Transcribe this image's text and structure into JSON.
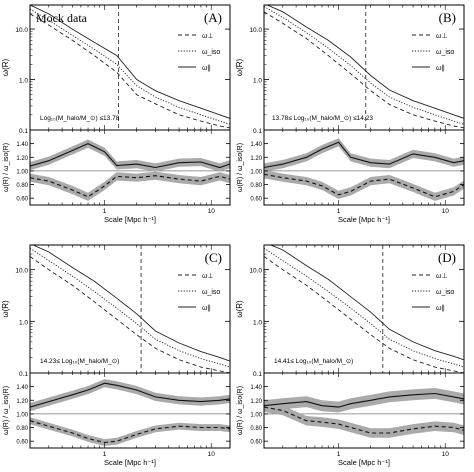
{
  "chart_data": [
    {
      "type": "line",
      "panel": "(A)",
      "title": "Mock data",
      "mass_range": "Log₁₀(M_halo/M_⊙) ≤13.78",
      "xlabel": "Scale [Mpc h⁻¹]",
      "ylabel_top": "ω(R)",
      "ylabel_bottom": "ω(R) / ω_iso(R)",
      "xscale": "log",
      "xlim": [
        0.2,
        15
      ],
      "top": {
        "yscale": "log",
        "ylim": [
          0.1,
          30
        ],
        "yticks": [
          "0.1",
          "1.0",
          "10.0"
        ],
        "vline_x": 1.35,
        "series": [
          {
            "name": "ω⊥",
            "style": "dashed",
            "x": [
              0.2,
              0.3,
              0.5,
              0.8,
              1.3,
              2.0,
              3.0,
              5.0,
              8.0,
              12.0,
              15.0
            ],
            "y": [
              20,
              12,
              6,
              3,
              1.4,
              0.5,
              0.33,
              0.2,
              0.15,
              0.12,
              0.11
            ]
          },
          {
            "name": "ω_iso",
            "style": "dotted",
            "x": [
              0.2,
              0.3,
              0.5,
              0.8,
              1.3,
              2.0,
              3.0,
              5.0,
              8.0,
              12.0,
              15.0
            ],
            "y": [
              25,
              15,
              7.5,
              4,
              2.0,
              0.75,
              0.45,
              0.28,
              0.2,
              0.15,
              0.13
            ]
          },
          {
            "name": "ω∥",
            "style": "solid",
            "x": [
              0.2,
              0.3,
              0.5,
              0.8,
              1.3,
              2.0,
              3.0,
              5.0,
              8.0,
              12.0,
              15.0
            ],
            "y": [
              30,
              20,
              10,
              5.5,
              3.0,
              1.0,
              0.6,
              0.38,
              0.27,
              0.2,
              0.17
            ]
          }
        ]
      },
      "bottom": {
        "ylim": [
          0.5,
          1.6
        ],
        "yticks": [
          "0.60",
          "0.80",
          "1.00",
          "1.20",
          "1.40"
        ],
        "ref": 1.0,
        "series": [
          {
            "name": "ω∥/ω_iso",
            "style": "solid",
            "x": [
              0.2,
              0.3,
              0.5,
              0.7,
              1.0,
              1.3,
              2.0,
              3.0,
              5.0,
              8.0,
              12.0,
              15.0
            ],
            "y": [
              1.07,
              1.15,
              1.3,
              1.4,
              1.28,
              1.08,
              1.1,
              1.05,
              1.12,
              1.13,
              1.05,
              1.1
            ],
            "band": 0.06
          },
          {
            "name": "ω⊥/ω_iso",
            "style": "dashed",
            "x": [
              0.2,
              0.3,
              0.5,
              0.7,
              1.0,
              1.3,
              2.0,
              3.0,
              5.0,
              8.0,
              12.0,
              15.0
            ],
            "y": [
              0.9,
              0.85,
              0.72,
              0.62,
              0.78,
              0.92,
              0.9,
              0.93,
              0.88,
              0.85,
              0.92,
              0.88
            ],
            "band": 0.06
          }
        ]
      }
    },
    {
      "type": "line",
      "panel": "(B)",
      "mass_range": "13.78≤ Log₁₀(M_halo/M_⊙) ≤14.23",
      "xlabel": "Scale [Mpc h⁻¹]",
      "ylabel_top": "ω(R)",
      "ylabel_bottom": "ω(R) / ω_iso(R)",
      "xscale": "log",
      "xlim": [
        0.2,
        15
      ],
      "top": {
        "yscale": "log",
        "ylim": [
          0.1,
          30
        ],
        "yticks": [
          "0.1",
          "1.0",
          "10.0"
        ],
        "vline_x": 1.8,
        "series": [
          {
            "name": "ω⊥",
            "style": "dashed",
            "x": [
              0.2,
              0.3,
              0.5,
              0.8,
              1.3,
              2.0,
              3.0,
              5.0,
              8.0,
              12.0,
              15.0
            ],
            "y": [
              22,
              13,
              6.5,
              3.0,
              1.3,
              0.6,
              0.32,
              0.2,
              0.15,
              0.12,
              0.11
            ]
          },
          {
            "name": "ω_iso",
            "style": "dotted",
            "x": [
              0.2,
              0.3,
              0.5,
              0.8,
              1.3,
              2.0,
              3.0,
              5.0,
              8.0,
              12.0,
              15.0
            ],
            "y": [
              28,
              17,
              8.5,
              4.2,
              1.9,
              0.85,
              0.45,
              0.28,
              0.2,
              0.15,
              0.13
            ]
          },
          {
            "name": "ω∥",
            "style": "solid",
            "x": [
              0.2,
              0.3,
              0.5,
              0.8,
              1.3,
              2.0,
              3.0,
              5.0,
              8.0,
              12.0,
              15.0
            ],
            "y": [
              32,
              22,
              11,
              6,
              2.8,
              1.2,
              0.62,
              0.38,
              0.27,
              0.2,
              0.17
            ]
          }
        ]
      },
      "bottom": {
        "ylim": [
          0.5,
          1.6
        ],
        "yticks": [
          "0.60",
          "0.80",
          "1.00",
          "1.20",
          "1.40"
        ],
        "ref": 1.0,
        "series": [
          {
            "name": "ω∥/ω_iso",
            "style": "solid",
            "x": [
              0.2,
              0.3,
              0.5,
              0.7,
              1.0,
              1.3,
              2.0,
              3.0,
              5.0,
              8.0,
              12.0,
              15.0
            ],
            "y": [
              1.05,
              1.1,
              1.2,
              1.32,
              1.42,
              1.2,
              1.12,
              1.1,
              1.25,
              1.2,
              1.12,
              1.15
            ],
            "band": 0.06
          },
          {
            "name": "ω⊥/ω_iso",
            "style": "dashed",
            "x": [
              0.2,
              0.3,
              0.5,
              0.7,
              1.0,
              1.3,
              2.0,
              3.0,
              5.0,
              8.0,
              12.0,
              15.0
            ],
            "y": [
              0.95,
              0.9,
              0.85,
              0.78,
              0.65,
              0.7,
              0.85,
              0.88,
              0.75,
              0.62,
              0.7,
              0.8
            ],
            "band": 0.06
          }
        ]
      }
    },
    {
      "type": "line",
      "panel": "(C)",
      "mass_range": "14.23≤ Log₁₀(M_halo/M_⊙)",
      "xlabel": "Scale [Mpc h⁻¹]",
      "ylabel_top": "ω(R)",
      "ylabel_bottom": "ω(R) / ω_iso(R)",
      "xscale": "log",
      "xlim": [
        0.2,
        15
      ],
      "top": {
        "yscale": "log",
        "ylim": [
          0.1,
          30
        ],
        "yticks": [
          "0.1",
          "1.0",
          "10.0"
        ],
        "vline_x": 2.2,
        "series": [
          {
            "name": "ω⊥",
            "style": "dashed",
            "x": [
              0.2,
              0.3,
              0.5,
              0.8,
              1.3,
              2.0,
              3.0,
              5.0,
              8.0,
              12.0,
              15.0
            ],
            "y": [
              18,
              10,
              5,
              2.4,
              1.1,
              0.55,
              0.3,
              0.18,
              0.13,
              0.11,
              0.1
            ]
          },
          {
            "name": "ω_iso",
            "style": "dotted",
            "x": [
              0.2,
              0.3,
              0.5,
              0.8,
              1.3,
              2.0,
              3.0,
              5.0,
              8.0,
              12.0,
              15.0
            ],
            "y": [
              26,
              15,
              7.5,
              3.8,
              1.8,
              0.9,
              0.45,
              0.27,
              0.19,
              0.15,
              0.13
            ]
          },
          {
            "name": "ω∥",
            "style": "solid",
            "x": [
              0.2,
              0.3,
              0.5,
              0.8,
              1.3,
              2.0,
              3.0,
              5.0,
              8.0,
              12.0,
              15.0
            ],
            "y": [
              32,
              22,
              11,
              6,
              2.8,
              1.4,
              0.65,
              0.38,
              0.26,
              0.2,
              0.17
            ]
          }
        ]
      },
      "bottom": {
        "ylim": [
          0.5,
          1.6
        ],
        "yticks": [
          "0.60",
          "0.80",
          "1.00",
          "1.20",
          "1.40"
        ],
        "ref": 1.0,
        "series": [
          {
            "name": "ω∥/ω_iso",
            "style": "solid",
            "x": [
              0.2,
              0.3,
              0.5,
              0.7,
              1.0,
              1.3,
              2.0,
              3.0,
              5.0,
              8.0,
              12.0,
              15.0
            ],
            "y": [
              1.1,
              1.18,
              1.28,
              1.35,
              1.45,
              1.42,
              1.35,
              1.25,
              1.2,
              1.18,
              1.2,
              1.22
            ],
            "band": 0.06
          },
          {
            "name": "ω⊥/ω_iso",
            "style": "dashed",
            "x": [
              0.2,
              0.3,
              0.5,
              0.7,
              1.0,
              1.3,
              2.0,
              3.0,
              5.0,
              8.0,
              12.0,
              15.0
            ],
            "y": [
              0.9,
              0.82,
              0.72,
              0.64,
              0.58,
              0.6,
              0.7,
              0.78,
              0.82,
              0.8,
              0.8,
              0.78
            ],
            "band": 0.05
          }
        ]
      }
    },
    {
      "type": "line",
      "panel": "(D)",
      "mass_range": "14.41≤ Log₁₀(M_halo/M_⊙)",
      "xlabel": "Scale [Mpc h⁻¹]",
      "ylabel_top": "ω(R)",
      "ylabel_bottom": "ω(R) / ω_iso(R)",
      "xscale": "log",
      "xlim": [
        0.2,
        15
      ],
      "top": {
        "yscale": "log",
        "ylim": [
          0.1,
          30
        ],
        "yticks": [
          "0.1",
          "1.0",
          "10.0"
        ],
        "vline_x": 2.6,
        "series": [
          {
            "name": "ω⊥",
            "style": "dashed",
            "x": [
              0.2,
              0.3,
              0.5,
              0.8,
              1.3,
              2.0,
              3.0,
              5.0,
              8.0,
              12.0,
              15.0
            ],
            "y": [
              18,
              10,
              5,
              2.4,
              1.1,
              0.55,
              0.3,
              0.18,
              0.13,
              0.11,
              0.1
            ]
          },
          {
            "name": "ω_iso",
            "style": "dotted",
            "x": [
              0.2,
              0.3,
              0.5,
              0.8,
              1.3,
              2.0,
              3.0,
              5.0,
              8.0,
              12.0,
              15.0
            ],
            "y": [
              26,
              15,
              7.5,
              3.8,
              1.8,
              0.9,
              0.45,
              0.27,
              0.19,
              0.15,
              0.13
            ]
          },
          {
            "name": "ω∥",
            "style": "solid",
            "x": [
              0.2,
              0.3,
              0.5,
              0.8,
              1.3,
              2.0,
              3.0,
              5.0,
              8.0,
              12.0,
              15.0
            ],
            "y": [
              34,
              24,
              12,
              6.5,
              3,
              1.5,
              0.7,
              0.4,
              0.27,
              0.21,
              0.18
            ]
          }
        ]
      },
      "bottom": {
        "ylim": [
          0.5,
          1.6
        ],
        "yticks": [
          "0.60",
          "0.80",
          "1.00",
          "1.20",
          "1.40"
        ],
        "ref": 1.0,
        "series": [
          {
            "name": "ω∥/ω_iso",
            "style": "solid",
            "x": [
              0.2,
              0.3,
              0.5,
              0.7,
              1.0,
              1.3,
              2.0,
              3.0,
              5.0,
              8.0,
              12.0,
              15.0
            ],
            "y": [
              1.12,
              1.15,
              1.18,
              1.12,
              1.1,
              1.15,
              1.2,
              1.25,
              1.28,
              1.3,
              1.25,
              1.22
            ],
            "band": 0.08
          },
          {
            "name": "ω⊥/ω_iso",
            "style": "dashed",
            "x": [
              0.2,
              0.3,
              0.5,
              0.7,
              1.0,
              1.3,
              2.0,
              3.0,
              5.0,
              8.0,
              12.0,
              15.0
            ],
            "y": [
              1.1,
              1.05,
              0.9,
              0.88,
              0.85,
              0.8,
              0.72,
              0.72,
              0.78,
              0.82,
              0.8,
              0.76
            ],
            "band": 0.07
          }
        ]
      }
    }
  ]
}
